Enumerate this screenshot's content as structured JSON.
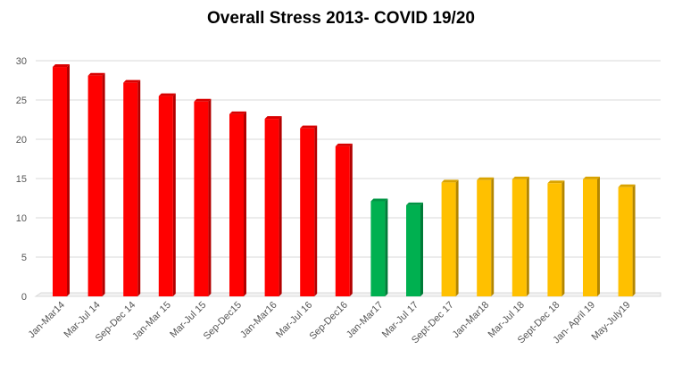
{
  "chart_data": {
    "type": "bar",
    "title": "Overall Stress 2013- COVID 19/20",
    "categories": [
      "Jan-Mar14",
      "Mar-Jul 14",
      "Sep-Dec 14",
      "Jan-Mar 15",
      "Mar-Jul 15",
      "Sep-Dec15",
      "Jan-Mar16",
      "Mar-Jul 16",
      "Sep-Dec16",
      "Jan-Mar17",
      "Mar-Jul 17",
      "Sept-Dec 17",
      "Jan-Mar18",
      "Mar-Jul 18",
      "Sept-Dec 18",
      "Jan- April 19",
      "May-July19"
    ],
    "values": [
      29.2,
      28.1,
      27.2,
      25.5,
      24.8,
      23.2,
      22.6,
      21.4,
      19.1,
      12.1,
      11.6,
      14.5,
      14.8,
      14.9,
      14.4,
      14.9,
      13.9
    ],
    "colors": [
      "#ff0000",
      "#ff0000",
      "#ff0000",
      "#ff0000",
      "#ff0000",
      "#ff0000",
      "#ff0000",
      "#ff0000",
      "#ff0000",
      "#00b050",
      "#00b050",
      "#ffc000",
      "#ffc000",
      "#ffc000",
      "#ffc000",
      "#ffc000",
      "#ffc000"
    ],
    "y_ticks": [
      "0",
      "5",
      "10",
      "15",
      "20",
      "25",
      "30"
    ],
    "ylim": [
      0,
      30
    ],
    "xlabel": "",
    "ylabel": "",
    "grid": true,
    "style": "3d-bar"
  }
}
